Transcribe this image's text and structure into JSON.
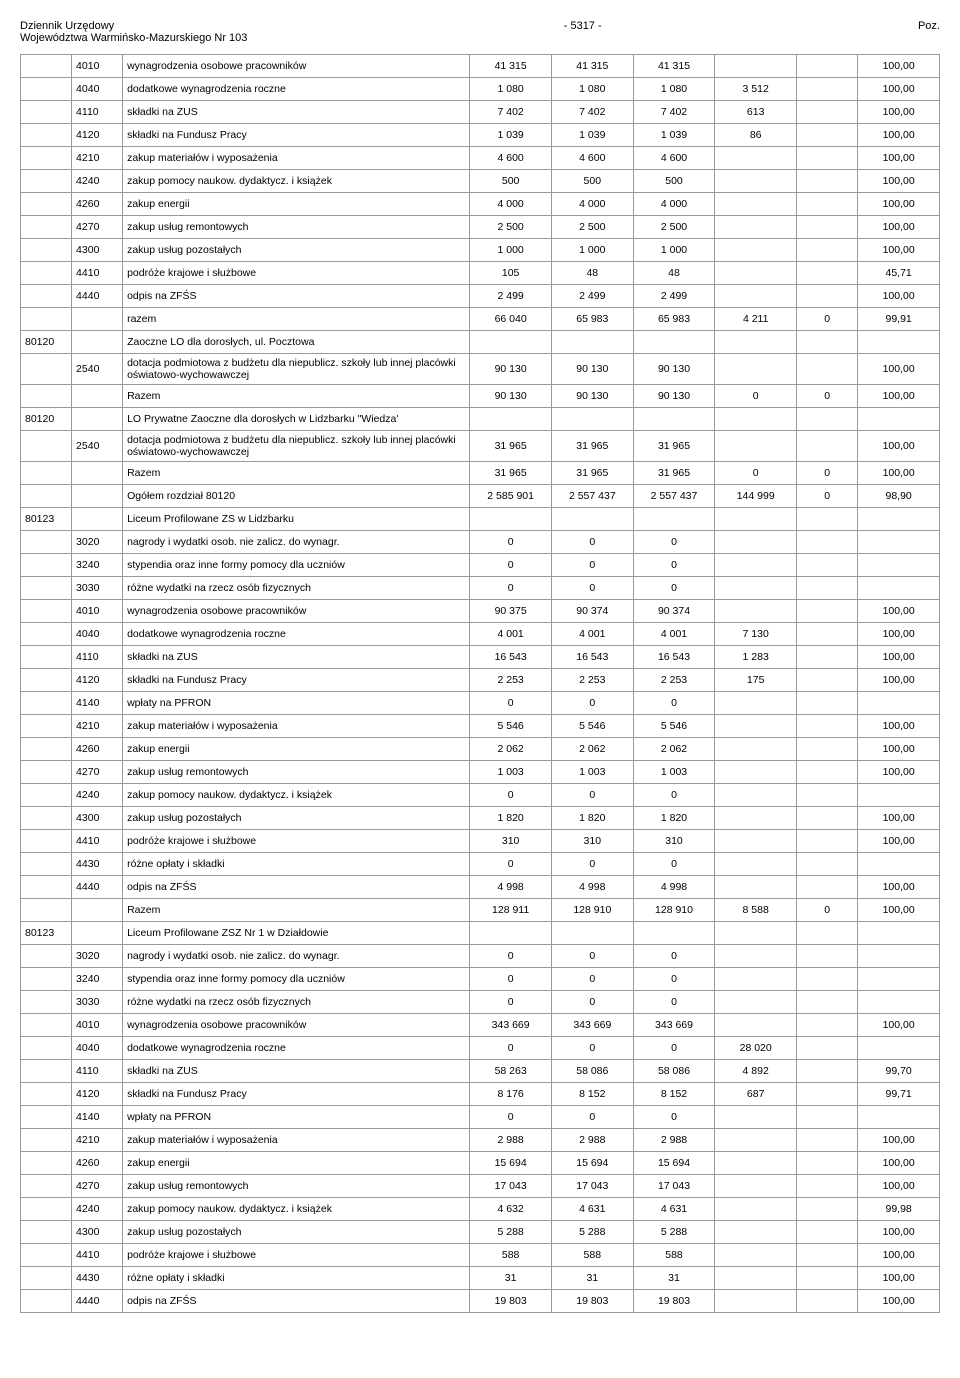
{
  "header": {
    "left1": "Dziennik Urzędowy",
    "left2": "Województwa Warmińsko-Mazurskiego Nr 103",
    "center": "- 5317 -",
    "right": "Poz."
  },
  "rows": [
    [
      "",
      "4010",
      "wynagrodzenia osobowe pracowników",
      "41 315",
      "41 315",
      "41 315",
      "",
      "",
      "100,00"
    ],
    [
      "",
      "4040",
      "dodatkowe wynagrodzenia roczne",
      "1 080",
      "1 080",
      "1 080",
      "3 512",
      "",
      "100,00"
    ],
    [
      "",
      "4110",
      "składki na ZUS",
      "7 402",
      "7 402",
      "7 402",
      "613",
      "",
      "100,00"
    ],
    [
      "",
      "4120",
      "składki na Fundusz Pracy",
      "1 039",
      "1 039",
      "1 039",
      "86",
      "",
      "100,00"
    ],
    [
      "",
      "4210",
      "zakup materiałów i wyposażenia",
      "4 600",
      "4 600",
      "4 600",
      "",
      "",
      "100,00"
    ],
    [
      "",
      "4240",
      "zakup pomocy naukow. dydaktycz. i książek",
      "500",
      "500",
      "500",
      "",
      "",
      "100,00"
    ],
    [
      "",
      "4260",
      "zakup energii",
      "4 000",
      "4 000",
      "4 000",
      "",
      "",
      "100,00"
    ],
    [
      "",
      "4270",
      "zakup usług remontowych",
      "2 500",
      "2 500",
      "2 500",
      "",
      "",
      "100,00"
    ],
    [
      "",
      "4300",
      "zakup usług pozostałych",
      "1 000",
      "1 000",
      "1 000",
      "",
      "",
      "100,00"
    ],
    [
      "",
      "4410",
      "podróże krajowe i służbowe",
      "105",
      "48",
      "48",
      "",
      "",
      "45,71"
    ],
    [
      "",
      "4440",
      "odpis na ZFŚS",
      "2 499",
      "2 499",
      "2 499",
      "",
      "",
      "100,00"
    ],
    [
      "",
      "",
      "razem",
      "66 040",
      "65 983",
      "65 983",
      "4 211",
      "0",
      "99,91"
    ],
    [
      "80120",
      "",
      "Zaoczne LO dla dorosłych, ul. Pocztowa",
      "",
      "",
      "",
      "",
      "",
      ""
    ],
    [
      "",
      "2540",
      "dotacja podmiotowa z budżetu dla niepublicz. szkoły lub innej placówki oświatowo-wychowawczej",
      "90 130",
      "90 130",
      "90 130",
      "",
      "",
      "100,00"
    ],
    [
      "",
      "",
      "Razem",
      "90 130",
      "90 130",
      "90 130",
      "0",
      "0",
      "100,00"
    ],
    [
      "80120",
      "",
      "LO Prywatne Zaoczne dla dorosłych w Lidzbarku \"Wiedza'",
      "",
      "",
      "",
      "",
      "",
      ""
    ],
    [
      "",
      "2540",
      "dotacja podmiotowa z budżetu dla niepublicz. szkoły lub innej placówki oświatowo-wychowawczej",
      "31 965",
      "31 965",
      "31 965",
      "",
      "",
      "100,00"
    ],
    [
      "",
      "",
      "Razem",
      "31 965",
      "31 965",
      "31 965",
      "0",
      "0",
      "100,00"
    ],
    [
      "",
      "",
      "Ogółem rozdział 80120",
      "2 585 901",
      "2 557 437",
      "2 557 437",
      "144 999",
      "0",
      "98,90"
    ],
    [
      "80123",
      "",
      "Liceum Profilowane ZS w Lidzbarku",
      "",
      "",
      "",
      "",
      "",
      ""
    ],
    [
      "",
      "3020",
      "nagrody i wydatki osob. nie zalicz. do wynagr.",
      "0",
      "0",
      "0",
      "",
      "",
      ""
    ],
    [
      "",
      "3240",
      "stypendia oraz inne formy pomocy dla uczniów",
      "0",
      "0",
      "0",
      "",
      "",
      ""
    ],
    [
      "",
      "3030",
      "różne wydatki na rzecz osób fizycznych",
      "0",
      "0",
      "0",
      "",
      "",
      ""
    ],
    [
      "",
      "4010",
      "wynagrodzenia osobowe pracowników",
      "90 375",
      "90 374",
      "90 374",
      "",
      "",
      "100,00"
    ],
    [
      "",
      "4040",
      "dodatkowe wynagrodzenia roczne",
      "4 001",
      "4 001",
      "4 001",
      "7 130",
      "",
      "100,00"
    ],
    [
      "",
      "4110",
      "składki na ZUS",
      "16 543",
      "16 543",
      "16 543",
      "1 283",
      "",
      "100,00"
    ],
    [
      "",
      "4120",
      "składki na Fundusz Pracy",
      "2 253",
      "2 253",
      "2 253",
      "175",
      "",
      "100,00"
    ],
    [
      "",
      "4140",
      "wpłaty na PFRON",
      "0",
      "0",
      "0",
      "",
      "",
      ""
    ],
    [
      "",
      "4210",
      "zakup materiałów i wyposażenia",
      "5 546",
      "5 546",
      "5 546",
      "",
      "",
      "100,00"
    ],
    [
      "",
      "4260",
      "zakup energii",
      "2 062",
      "2 062",
      "2 062",
      "",
      "",
      "100,00"
    ],
    [
      "",
      "4270",
      "zakup usług remontowych",
      "1 003",
      "1 003",
      "1 003",
      "",
      "",
      "100,00"
    ],
    [
      "",
      "4240",
      "zakup pomocy naukow. dydaktycz. i książek",
      "0",
      "0",
      "0",
      "",
      "",
      ""
    ],
    [
      "",
      "4300",
      "zakup usług pozostałych",
      "1 820",
      "1 820",
      "1 820",
      "",
      "",
      "100,00"
    ],
    [
      "",
      "4410",
      "podróże krajowe i służbowe",
      "310",
      "310",
      "310",
      "",
      "",
      "100,00"
    ],
    [
      "",
      "4430",
      "różne opłaty i składki",
      "0",
      "0",
      "0",
      "",
      "",
      ""
    ],
    [
      "",
      "4440",
      "odpis na ZFŚS",
      "4 998",
      "4 998",
      "4 998",
      "",
      "",
      "100,00"
    ],
    [
      "",
      "",
      "Razem",
      "128 911",
      "128 910",
      "128 910",
      "8 588",
      "0",
      "100,00"
    ],
    [
      "80123",
      "",
      "Liceum Profilowane ZSZ Nr 1 w Działdowie",
      "",
      "",
      "",
      "",
      "",
      ""
    ],
    [
      "",
      "3020",
      "nagrody i wydatki osob. nie zalicz. do wynagr.",
      "0",
      "0",
      "0",
      "",
      "",
      ""
    ],
    [
      "",
      "3240",
      "stypendia oraz inne formy pomocy dla uczniów",
      "0",
      "0",
      "0",
      "",
      "",
      ""
    ],
    [
      "",
      "3030",
      "różne wydatki na rzecz osób fizycznych",
      "0",
      "0",
      "0",
      "",
      "",
      ""
    ],
    [
      "",
      "4010",
      "wynagrodzenia osobowe pracowników",
      "343 669",
      "343 669",
      "343 669",
      "",
      "",
      "100,00"
    ],
    [
      "",
      "4040",
      "dodatkowe wynagrodzenia roczne",
      "0",
      "0",
      "0",
      "28 020",
      "",
      ""
    ],
    [
      "",
      "4110",
      "składki na ZUS",
      "58 263",
      "58 086",
      "58 086",
      "4 892",
      "",
      "99,70"
    ],
    [
      "",
      "4120",
      "składki na Fundusz Pracy",
      "8 176",
      "8 152",
      "8 152",
      "687",
      "",
      "99,71"
    ],
    [
      "",
      "4140",
      "wpłaty na PFRON",
      "0",
      "0",
      "0",
      "",
      "",
      ""
    ],
    [
      "",
      "4210",
      "zakup materiałów i wyposażenia",
      "2 988",
      "2 988",
      "2 988",
      "",
      "",
      "100,00"
    ],
    [
      "",
      "4260",
      "zakup energii",
      "15 694",
      "15 694",
      "15 694",
      "",
      "",
      "100,00"
    ],
    [
      "",
      "4270",
      "zakup usług remontowych",
      "17 043",
      "17 043",
      "17 043",
      "",
      "",
      "100,00"
    ],
    [
      "",
      "4240",
      "zakup pomocy naukow. dydaktycz. i książek",
      "4 632",
      "4 631",
      "4 631",
      "",
      "",
      "99,98"
    ],
    [
      "",
      "4300",
      "zakup usług pozostałych",
      "5 288",
      "5 288",
      "5 288",
      "",
      "",
      "100,00"
    ],
    [
      "",
      "4410",
      "podróże krajowe i służbowe",
      "588",
      "588",
      "588",
      "",
      "",
      "100,00"
    ],
    [
      "",
      "4430",
      "różne opłaty i składki",
      "31",
      "31",
      "31",
      "",
      "",
      "100,00"
    ],
    [
      "",
      "4440",
      "odpis na ZFŚS",
      "19 803",
      "19 803",
      "19 803",
      "",
      "",
      "100,00"
    ]
  ]
}
